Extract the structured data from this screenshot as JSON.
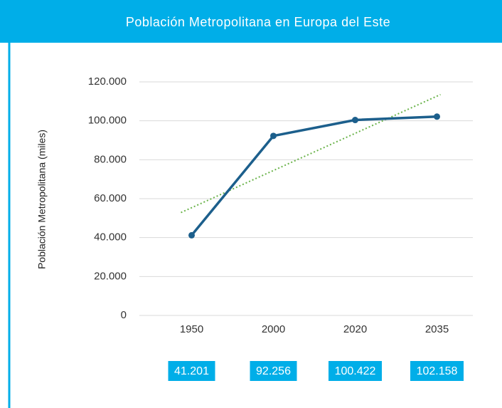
{
  "chart_data": {
    "type": "line",
    "title": "Población Metropolitana en Europa del Este",
    "y_label": "Población Metropolitana (miles)",
    "categories": [
      "1950",
      "2000",
      "2020",
      "2035"
    ],
    "series": [
      {
        "name": "Población Metropolitana",
        "color": "#1c5f8c",
        "values": [
          41201,
          92256,
          100422,
          102158
        ],
        "value_labels": [
          "41.201",
          "92.256",
          "100.422",
          "102.158"
        ]
      }
    ],
    "trendline": {
      "type": "linear",
      "color": "#6ab34a"
    },
    "ylim": [
      0,
      120000
    ],
    "yticks": [
      {
        "value": 0,
        "label": "0"
      },
      {
        "value": 20000,
        "label": "20.000"
      },
      {
        "value": 40000,
        "label": "40.000"
      },
      {
        "value": 60000,
        "label": "60.000"
      },
      {
        "value": 80000,
        "label": "80.000"
      },
      {
        "value": 100000,
        "label": "100.000"
      },
      {
        "value": 120000,
        "label": "120.000"
      }
    ],
    "grid": true
  }
}
